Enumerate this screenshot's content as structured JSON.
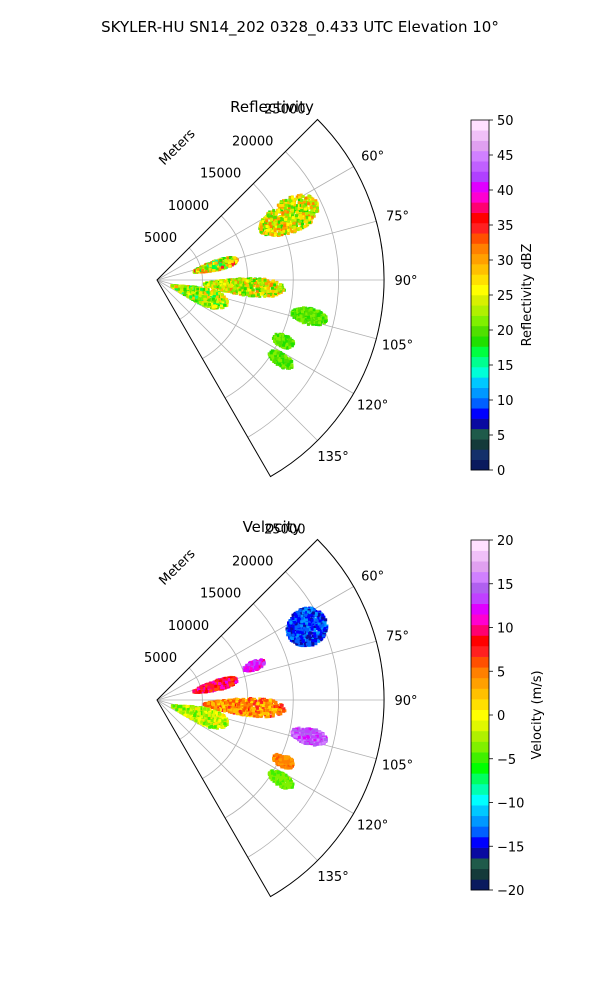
{
  "figure": {
    "title": "SKYLER-HU  SN14_202  0328_0.433 UTC Elevation 10°"
  },
  "chart_data": [
    {
      "type": "heatmap",
      "subtype": "polar-sector-radar",
      "title": "Reflectivity",
      "radial_label": "Meters",
      "radial_ticks": [
        5000,
        10000,
        15000,
        20000,
        25000
      ],
      "radial_tick_labels": [
        "5000",
        "10000",
        "15000",
        "20000",
        "25000"
      ],
      "r_max": 25000,
      "azimuth_range_deg": [
        45,
        150
      ],
      "azimuth_ticks_deg": [
        60,
        75,
        90,
        105,
        120,
        135
      ],
      "azimuth_tick_labels": [
        "60°",
        "75°",
        "90°",
        "105°",
        "120°",
        "135°"
      ],
      "grid": true,
      "colorbar": {
        "label": "Reflectivity dBZ",
        "min": 0,
        "max": 50,
        "ticks": [
          0,
          5,
          10,
          15,
          20,
          25,
          30,
          35,
          40,
          45,
          50
        ],
        "tick_labels": [
          "0",
          "5",
          "10",
          "15",
          "20",
          "25",
          "30",
          "35",
          "40",
          "45",
          "50"
        ],
        "colors": [
          "#0a1a5e",
          "#14306a",
          "#143a3a",
          "#1f5a4a",
          "#0a0aa0",
          "#0000ff",
          "#0060ff",
          "#0098ff",
          "#00c8ff",
          "#00ffd8",
          "#00ff90",
          "#00ff40",
          "#20e000",
          "#50e000",
          "#80f000",
          "#b0f000",
          "#d8f000",
          "#ffff00",
          "#ffe000",
          "#ffc000",
          "#ffa000",
          "#ff8000",
          "#ff5000",
          "#ff2020",
          "#ff0000",
          "#ff0070",
          "#ff00d0",
          "#e000ff",
          "#b040ff",
          "#c060ff",
          "#d080ff",
          "#e0a0f0",
          "#f0c0f8",
          "#ffe0ff"
        ]
      },
      "echo_regions": [
        {
          "az": [
            57,
            70
          ],
          "r": [
            12500,
            19500
          ],
          "value_range": [
            18,
            32
          ]
        },
        {
          "az": [
            70,
            79
          ],
          "r": [
            4000,
            9000
          ],
          "value_range": [
            15,
            35
          ]
        },
        {
          "az": [
            88,
            99
          ],
          "r": [
            5000,
            14000
          ],
          "value_range": [
            18,
            32
          ]
        },
        {
          "az": [
            98,
            118
          ],
          "r": [
            1500,
            8000
          ],
          "value_range": [
            16,
            30
          ]
        },
        {
          "az": [
            100,
            106
          ],
          "r": [
            15000,
            19000
          ],
          "value_range": [
            18,
            22
          ]
        },
        {
          "az": [
            113,
            118
          ],
          "r": [
            14000,
            16500
          ],
          "value_range": [
            18,
            22
          ]
        },
        {
          "az": [
            120,
            125
          ],
          "r": [
            14500,
            17500
          ],
          "value_range": [
            18,
            22
          ]
        }
      ]
    },
    {
      "type": "heatmap",
      "subtype": "polar-sector-radar",
      "title": "Velocity",
      "radial_label": "Meters",
      "radial_ticks": [
        5000,
        10000,
        15000,
        20000,
        25000
      ],
      "radial_tick_labels": [
        "5000",
        "10000",
        "15000",
        "20000",
        "25000"
      ],
      "r_max": 25000,
      "azimuth_range_deg": [
        45,
        150
      ],
      "azimuth_ticks_deg": [
        60,
        75,
        90,
        105,
        120,
        135
      ],
      "azimuth_tick_labels": [
        "60°",
        "75°",
        "90°",
        "105°",
        "120°",
        "135°"
      ],
      "grid": true,
      "colorbar": {
        "label": "Velocity (m/s)",
        "min": -20,
        "max": 20,
        "ticks": [
          -20,
          -15,
          -10,
          -5,
          0,
          5,
          10,
          15,
          20
        ],
        "tick_labels": [
          "−20",
          "−15",
          "−10",
          "−5",
          "0",
          "5",
          "10",
          "15",
          "20"
        ],
        "colors": [
          "#0a1a5e",
          "#143a3a",
          "#1f5a4a",
          "#0a0aa0",
          "#0000ff",
          "#0060ff",
          "#0098ff",
          "#00c8ff",
          "#00ffff",
          "#00ffb0",
          "#00ff60",
          "#00ff00",
          "#40f000",
          "#80f000",
          "#b0f000",
          "#e0f800",
          "#ffff00",
          "#ffe000",
          "#ffc000",
          "#ffa000",
          "#ff8000",
          "#ff5000",
          "#ff2020",
          "#ff0000",
          "#ff0070",
          "#ff00d0",
          "#e000ff",
          "#c040ff",
          "#b060f0",
          "#d080ff",
          "#e0a0f0",
          "#f0c0f8",
          "#ffe0ff"
        ]
      },
      "echo_regions": [
        {
          "az": [
            57,
            70
          ],
          "r": [
            16000,
            20500
          ],
          "value_range": [
            -16,
            -12
          ]
        },
        {
          "az": [
            67,
            72
          ],
          "r": [
            10000,
            12500
          ],
          "value_range": [
            10,
            14
          ]
        },
        {
          "az": [
            70,
            79
          ],
          "r": [
            4000,
            9000
          ],
          "value_range": [
            6,
            12
          ]
        },
        {
          "az": [
            88,
            99
          ],
          "r": [
            5000,
            14000
          ],
          "value_range": [
            1,
            8
          ]
        },
        {
          "az": [
            98,
            118
          ],
          "r": [
            1500,
            8000
          ],
          "value_range": [
            -5,
            2
          ]
        },
        {
          "az": [
            100,
            106
          ],
          "r": [
            15000,
            19000
          ],
          "value_range": [
            12,
            16
          ]
        },
        {
          "az": [
            113,
            118
          ],
          "r": [
            14000,
            16500
          ],
          "value_range": [
            3,
            6
          ]
        },
        {
          "az": [
            120,
            125
          ],
          "r": [
            14500,
            17500
          ],
          "value_range": [
            -5,
            -3
          ]
        }
      ]
    }
  ]
}
